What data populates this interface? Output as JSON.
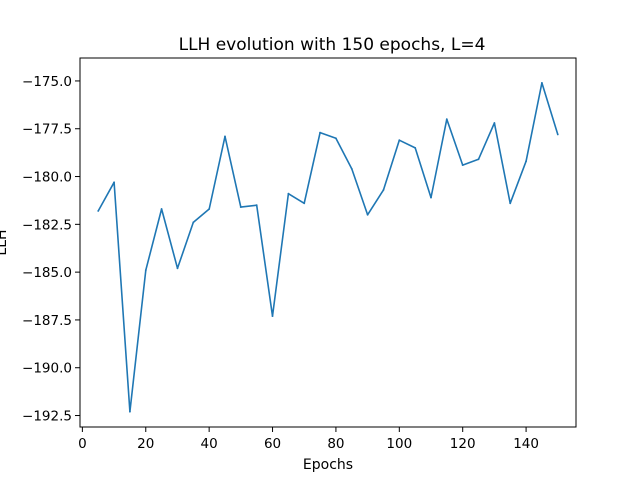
{
  "chart_data": {
    "type": "line",
    "title": "LLH evolution with 150 epochs, L=4",
    "xlabel": "Epochs",
    "ylabel": "LLH",
    "xlim": [
      -0.75,
      155.75
    ],
    "ylim": [
      -193.1,
      -173.8
    ],
    "xticks": [
      0,
      20,
      40,
      60,
      80,
      100,
      120,
      140
    ],
    "xtick_labels": [
      "0",
      "20",
      "40",
      "60",
      "80",
      "100",
      "120",
      "140"
    ],
    "yticks": [
      -175.0,
      -177.5,
      -180.0,
      -182.5,
      -185.0,
      -187.5,
      -190.0,
      -192.5
    ],
    "ytick_labels": [
      "−175.0",
      "−177.5",
      "−180.0",
      "−182.5",
      "−185.0",
      "−187.5",
      "−190.0",
      "−192.5"
    ],
    "grid": false,
    "series": [
      {
        "color": "#1f77b4",
        "x": [
          5,
          10,
          15,
          20,
          25,
          30,
          35,
          40,
          45,
          50,
          55,
          60,
          65,
          70,
          75,
          80,
          85,
          90,
          95,
          100,
          105,
          110,
          115,
          120,
          125,
          130,
          135,
          140,
          145,
          150
        ],
        "values": [
          -181.8,
          -180.3,
          -192.3,
          -184.9,
          -181.7,
          -184.8,
          -182.4,
          -181.7,
          -177.9,
          -181.6,
          -181.5,
          -187.3,
          -180.9,
          -181.4,
          -177.7,
          -178.0,
          -179.6,
          -182.0,
          -180.7,
          -178.1,
          -178.5,
          -181.1,
          -177.0,
          -179.4,
          -179.1,
          -177.2,
          -181.4,
          -179.2,
          -175.1,
          -177.8
        ]
      }
    ]
  }
}
